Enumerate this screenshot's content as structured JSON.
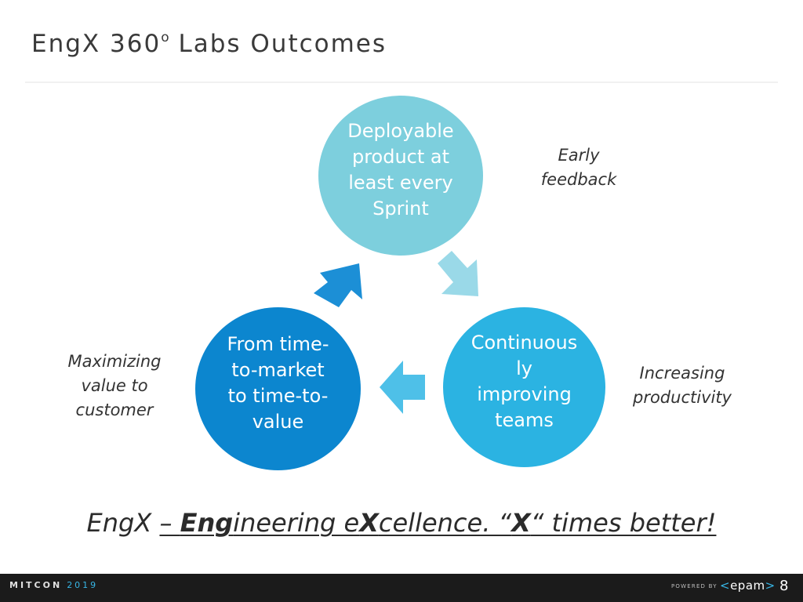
{
  "slide": {
    "title_text": "EngX 360",
    "title_sup": "o",
    "title_rest": " Labs Outcomes"
  },
  "cycle": {
    "top": "Deployable\nproduct at\nleast every\nSprint",
    "right": "Continuous\nly\nimproving\nteams",
    "left": "From time-\nto-market\nto time-to-\nvalue"
  },
  "notes": {
    "early": "Early\nfeedback",
    "productivity": "Increasing\nproductivity",
    "value": "Maximizing\nvalue to\ncustomer"
  },
  "tagline": {
    "lead": "EngX ",
    "dash": "– ",
    "eng_bold": "Eng",
    "ineering": "ineering e",
    "x_bold": "X",
    "cellence": "cellence. “",
    "x2_bold": "X",
    "rest": "“ times better!"
  },
  "footer": {
    "logo_text": "MITCON",
    "logo_year": "2019",
    "powered_by": "POWERED BY",
    "brand_left": "<",
    "brand_name": "epam",
    "brand_right": ">",
    "page_number": "8"
  },
  "colors": {
    "top_circle": "#7dcfdd",
    "right_circle": "#2bb3e2",
    "left_circle": "#0c86cf"
  }
}
